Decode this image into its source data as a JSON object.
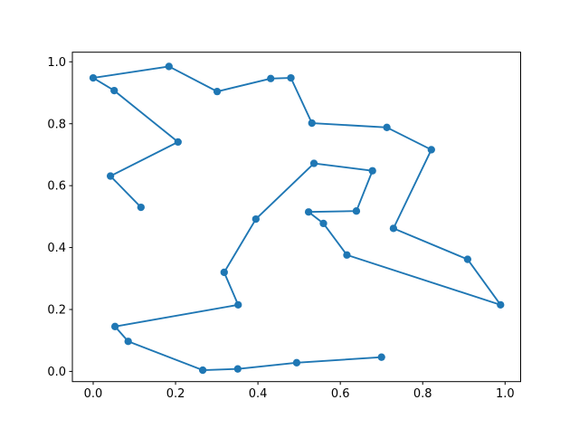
{
  "figure": {
    "background": "#ffffff",
    "axes_edge_color": "#000000",
    "tick_color": "#000000",
    "tick_label_color": "#000000"
  },
  "chart_data": {
    "type": "line",
    "title": "",
    "xlabel": "",
    "ylabel": "",
    "grid": false,
    "legend": null,
    "xlim": [
      -0.0505,
      1.0378
    ],
    "ylim": [
      -0.033,
      1.031
    ],
    "xticks": {
      "values": [
        0.0,
        0.2,
        0.4,
        0.6,
        0.8,
        1.0
      ],
      "labels": [
        "0.0",
        "0.2",
        "0.4",
        "0.6",
        "0.8",
        "1.0"
      ]
    },
    "yticks": {
      "values": [
        0.0,
        0.2,
        0.4,
        0.6,
        0.8,
        1.0
      ],
      "labels": [
        "0.0",
        "0.2",
        "0.4",
        "0.6",
        "0.8",
        "1.0"
      ]
    },
    "series": [
      {
        "name": "series-0",
        "color": "#1f77b4",
        "marker": "circle",
        "marker_radius": 4.15,
        "line_width": 1.9,
        "points": [
          [
            0.116,
            0.53
          ],
          [
            0.042,
            0.631
          ],
          [
            0.206,
            0.741
          ],
          [
            0.051,
            0.907
          ],
          [
            0.0,
            0.948
          ],
          [
            0.184,
            0.985
          ],
          [
            0.301,
            0.904
          ],
          [
            0.431,
            0.946
          ],
          [
            0.48,
            0.948
          ],
          [
            0.531,
            0.802
          ],
          [
            0.713,
            0.788
          ],
          [
            0.821,
            0.716
          ],
          [
            0.729,
            0.462
          ],
          [
            0.909,
            0.362
          ],
          [
            0.989,
            0.215
          ],
          [
            0.616,
            0.376
          ],
          [
            0.559,
            0.478
          ],
          [
            0.523,
            0.515
          ],
          [
            0.639,
            0.518
          ],
          [
            0.678,
            0.648
          ],
          [
            0.536,
            0.672
          ],
          [
            0.395,
            0.492
          ],
          [
            0.318,
            0.32
          ],
          [
            0.352,
            0.215
          ],
          [
            0.053,
            0.145
          ],
          [
            0.085,
            0.097
          ],
          [
            0.266,
            0.004
          ],
          [
            0.351,
            0.008
          ],
          [
            0.494,
            0.028
          ],
          [
            0.7,
            0.046
          ]
        ]
      }
    ]
  }
}
